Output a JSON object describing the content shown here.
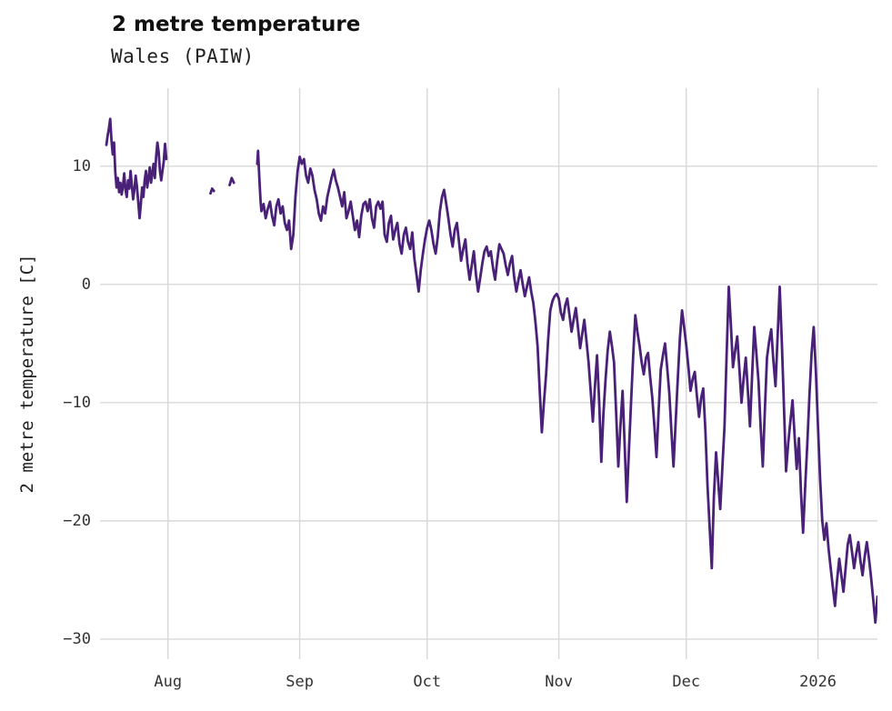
{
  "chart_data": {
    "type": "line",
    "title": "2 metre temperature",
    "subtitle": "Wales (PAIW)",
    "ylabel": "2 metre temperature [C]",
    "xlabel": "",
    "legend": false,
    "grid": true,
    "grid_color": "#d8d8d8",
    "line_color": "#4a2178",
    "line_width": 2.8,
    "x_unit": "day_index (0 = chart left edge, mid-July; Aug 1 = 16, Jan 1 2026 = 169)",
    "xlim": [
      0,
      183
    ],
    "ylim": [
      -31.7,
      16.6
    ],
    "yticks": [
      {
        "value": 10,
        "label": "10"
      },
      {
        "value": 0,
        "label": "0"
      },
      {
        "value": -10,
        "label": "−10"
      },
      {
        "value": -20,
        "label": "−20"
      },
      {
        "value": -30,
        "label": "−30"
      }
    ],
    "xticks": [
      {
        "value": 16,
        "label": "Aug"
      },
      {
        "value": 47,
        "label": "Sep"
      },
      {
        "value": 77,
        "label": "Oct"
      },
      {
        "value": 108,
        "label": "Nov"
      },
      {
        "value": 138,
        "label": "Dec"
      },
      {
        "value": 169,
        "label": "2026"
      }
    ],
    "segments": [
      [
        [
          1.5,
          11.8
        ],
        [
          1.8,
          12.6
        ],
        [
          2.1,
          13.2
        ],
        [
          2.4,
          14.0
        ],
        [
          2.7,
          12.2
        ],
        [
          3.0,
          11.0
        ],
        [
          3.3,
          12.0
        ],
        [
          3.6,
          9.5
        ],
        [
          3.9,
          8.2
        ],
        [
          4.2,
          9.0
        ],
        [
          4.5,
          7.8
        ],
        [
          4.8,
          8.6
        ],
        [
          5.1,
          7.6
        ],
        [
          5.4,
          8.3
        ],
        [
          5.7,
          9.4
        ],
        [
          6.0,
          8.0
        ],
        [
          6.3,
          7.4
        ],
        [
          6.6,
          8.8
        ],
        [
          6.9,
          8.1
        ],
        [
          7.2,
          9.6
        ],
        [
          7.5,
          8.4
        ],
        [
          7.8,
          7.2
        ],
        [
          8.1,
          8.0
        ],
        [
          8.4,
          9.2
        ],
        [
          8.7,
          8.3
        ],
        [
          9.0,
          7.0
        ],
        [
          9.3,
          5.6
        ],
        [
          9.6,
          6.8
        ],
        [
          9.9,
          8.2
        ],
        [
          10.2,
          7.4
        ],
        [
          10.5,
          8.8
        ],
        [
          10.8,
          9.6
        ],
        [
          11.1,
          8.2
        ],
        [
          11.4,
          9.0
        ],
        [
          11.7,
          9.9
        ],
        [
          12.0,
          8.6
        ],
        [
          12.3,
          9.4
        ],
        [
          12.6,
          10.2
        ],
        [
          12.9,
          9.0
        ],
        [
          13.2,
          10.8
        ],
        [
          13.5,
          12.0
        ],
        [
          13.8,
          11.2
        ],
        [
          14.1,
          9.6
        ],
        [
          14.4,
          8.8
        ],
        [
          14.7,
          9.6
        ],
        [
          15.0,
          10.4
        ],
        [
          15.3,
          11.9
        ],
        [
          15.6,
          10.6
        ]
      ],
      [
        [
          26.0,
          7.7
        ],
        [
          26.4,
          8.1
        ],
        [
          26.8,
          7.9
        ]
      ],
      [
        [
          30.5,
          8.4
        ],
        [
          31.0,
          9.0
        ],
        [
          31.5,
          8.6
        ]
      ],
      [
        [
          37.0,
          10.2
        ],
        [
          37.2,
          11.3
        ],
        [
          37.5,
          9.0
        ],
        [
          37.8,
          7.0
        ],
        [
          38.0,
          6.2
        ],
        [
          38.5,
          6.8
        ],
        [
          39.0,
          5.6
        ],
        [
          39.5,
          6.4
        ],
        [
          40.0,
          7.0
        ],
        [
          40.5,
          5.8
        ],
        [
          41.0,
          5.0
        ],
        [
          41.5,
          6.6
        ],
        [
          42.0,
          7.2
        ],
        [
          42.5,
          6.0
        ],
        [
          43.0,
          6.6
        ],
        [
          43.5,
          5.2
        ],
        [
          44.0,
          4.6
        ],
        [
          44.5,
          5.4
        ],
        [
          45.0,
          3.0
        ],
        [
          45.5,
          4.2
        ],
        [
          46.0,
          7.4
        ],
        [
          46.5,
          9.6
        ],
        [
          47.0,
          10.8
        ],
        [
          47.5,
          10.2
        ],
        [
          48.0,
          10.6
        ],
        [
          48.5,
          9.2
        ],
        [
          49.0,
          8.6
        ],
        [
          49.5,
          9.8
        ],
        [
          50.0,
          9.2
        ],
        [
          50.5,
          8.0
        ],
        [
          51.0,
          7.2
        ],
        [
          51.5,
          6.0
        ],
        [
          52.0,
          5.4
        ],
        [
          52.5,
          6.6
        ],
        [
          53.0,
          6.0
        ],
        [
          53.5,
          7.4
        ],
        [
          54.0,
          8.2
        ],
        [
          54.5,
          9.0
        ],
        [
          55.0,
          9.7
        ],
        [
          55.5,
          8.8
        ],
        [
          56.0,
          8.2
        ],
        [
          56.5,
          7.4
        ],
        [
          57.0,
          6.6
        ],
        [
          57.5,
          7.8
        ],
        [
          58.0,
          5.6
        ],
        [
          58.5,
          6.2
        ],
        [
          59.0,
          7.0
        ],
        [
          59.5,
          5.8
        ],
        [
          60.0,
          4.6
        ],
        [
          60.5,
          5.4
        ],
        [
          61.0,
          4.0
        ],
        [
          61.5,
          5.8
        ],
        [
          62.0,
          6.8
        ],
        [
          62.5,
          7.0
        ],
        [
          63.0,
          6.2
        ],
        [
          63.5,
          7.2
        ],
        [
          64.0,
          5.6
        ],
        [
          64.5,
          4.8
        ],
        [
          65.0,
          6.6
        ],
        [
          65.5,
          7.0
        ],
        [
          66.0,
          6.4
        ],
        [
          66.5,
          7.0
        ],
        [
          67.0,
          4.2
        ],
        [
          67.5,
          3.6
        ],
        [
          68.0,
          5.2
        ],
        [
          68.5,
          5.8
        ],
        [
          69.0,
          3.8
        ],
        [
          69.5,
          4.6
        ],
        [
          70.0,
          5.2
        ],
        [
          70.5,
          3.4
        ],
        [
          71.0,
          2.6
        ],
        [
          71.5,
          4.2
        ],
        [
          72.0,
          4.8
        ],
        [
          72.5,
          3.6
        ],
        [
          73.0,
          3.0
        ],
        [
          73.5,
          4.4
        ],
        [
          74.0,
          2.2
        ],
        [
          74.5,
          0.8
        ],
        [
          75.0,
          -0.6
        ],
        [
          75.5,
          1.2
        ],
        [
          76.0,
          2.6
        ],
        [
          76.5,
          3.8
        ],
        [
          77.0,
          4.8
        ],
        [
          77.5,
          5.4
        ],
        [
          78.0,
          4.6
        ],
        [
          78.5,
          3.4
        ],
        [
          79.0,
          2.6
        ],
        [
          79.5,
          4.0
        ],
        [
          80.0,
          6.2
        ],
        [
          80.5,
          7.4
        ],
        [
          81.0,
          8.0
        ],
        [
          81.5,
          6.8
        ],
        [
          82.0,
          5.6
        ],
        [
          82.5,
          4.2
        ],
        [
          83.0,
          3.2
        ],
        [
          83.5,
          4.6
        ],
        [
          84.0,
          5.2
        ],
        [
          84.5,
          3.6
        ],
        [
          85.0,
          2.0
        ],
        [
          85.5,
          3.0
        ],
        [
          86.0,
          3.8
        ],
        [
          86.5,
          1.8
        ],
        [
          87.0,
          0.4
        ],
        [
          87.5,
          1.6
        ],
        [
          88.0,
          2.8
        ],
        [
          88.5,
          0.8
        ],
        [
          89.0,
          -0.6
        ],
        [
          89.5,
          0.6
        ],
        [
          90.0,
          1.8
        ],
        [
          90.5,
          2.8
        ],
        [
          91.0,
          3.2
        ],
        [
          91.5,
          2.4
        ],
        [
          92.0,
          2.8
        ],
        [
          92.5,
          1.4
        ],
        [
          93.0,
          0.4
        ],
        [
          93.5,
          2.0
        ],
        [
          94.0,
          3.4
        ],
        [
          94.5,
          3.0
        ],
        [
          95.0,
          2.6
        ],
        [
          95.5,
          1.6
        ],
        [
          96.0,
          0.8
        ],
        [
          96.5,
          1.8
        ],
        [
          97.0,
          2.4
        ],
        [
          97.5,
          0.6
        ],
        [
          98.0,
          -0.6
        ],
        [
          98.5,
          0.4
        ],
        [
          99.0,
          1.2
        ],
        [
          99.5,
          0.0
        ],
        [
          100.0,
          -1.0
        ],
        [
          100.5,
          -0.2
        ],
        [
          101.0,
          0.6
        ],
        [
          101.5,
          -0.6
        ],
        [
          102.0,
          -1.6
        ],
        [
          102.5,
          -3.2
        ],
        [
          103.0,
          -5.2
        ],
        [
          103.5,
          -9.0
        ],
        [
          104.0,
          -12.5
        ],
        [
          104.5,
          -10.0
        ],
        [
          105.0,
          -7.6
        ],
        [
          105.5,
          -4.6
        ],
        [
          106.0,
          -2.2
        ],
        [
          106.5,
          -1.4
        ],
        [
          107.0,
          -1.0
        ],
        [
          107.5,
          -0.8
        ],
        [
          108.0,
          -1.2
        ],
        [
          108.5,
          -2.4
        ],
        [
          109.0,
          -3.0
        ],
        [
          109.5,
          -1.8
        ],
        [
          110.0,
          -1.2
        ],
        [
          110.5,
          -2.6
        ],
        [
          111.0,
          -4.0
        ],
        [
          111.5,
          -3.0
        ],
        [
          112.0,
          -2.0
        ],
        [
          112.5,
          -3.6
        ],
        [
          113.0,
          -5.4
        ],
        [
          113.5,
          -4.2
        ],
        [
          114.0,
          -3.0
        ],
        [
          114.5,
          -4.8
        ],
        [
          115.0,
          -6.6
        ],
        [
          115.5,
          -9.0
        ],
        [
          116.0,
          -11.6
        ],
        [
          116.5,
          -8.6
        ],
        [
          117.0,
          -6.0
        ],
        [
          117.5,
          -10.0
        ],
        [
          118.0,
          -15.0
        ],
        [
          118.5,
          -11.0
        ],
        [
          119.0,
          -8.0
        ],
        [
          119.5,
          -5.6
        ],
        [
          120.0,
          -4.0
        ],
        [
          120.5,
          -5.2
        ],
        [
          121.0,
          -6.6
        ],
        [
          121.5,
          -11.0
        ],
        [
          122.0,
          -15.4
        ],
        [
          122.5,
          -12.0
        ],
        [
          123.0,
          -9.0
        ],
        [
          123.5,
          -13.6
        ],
        [
          124.0,
          -18.4
        ],
        [
          124.5,
          -14.0
        ],
        [
          125.0,
          -10.0
        ],
        [
          125.5,
          -6.0
        ],
        [
          126.0,
          -2.6
        ],
        [
          126.5,
          -4.0
        ],
        [
          127.0,
          -5.2
        ],
        [
          127.5,
          -6.6
        ],
        [
          128.0,
          -7.6
        ],
        [
          128.5,
          -6.2
        ],
        [
          129.0,
          -5.8
        ],
        [
          129.5,
          -7.8
        ],
        [
          130.0,
          -9.6
        ],
        [
          130.5,
          -12.0
        ],
        [
          131.0,
          -14.6
        ],
        [
          131.5,
          -10.6
        ],
        [
          132.0,
          -7.2
        ],
        [
          132.5,
          -6.0
        ],
        [
          133.0,
          -5.0
        ],
        [
          133.5,
          -7.0
        ],
        [
          134.0,
          -9.2
        ],
        [
          134.5,
          -12.4
        ],
        [
          135.0,
          -15.4
        ],
        [
          135.5,
          -11.6
        ],
        [
          136.0,
          -8.0
        ],
        [
          136.5,
          -4.6
        ],
        [
          137.0,
          -2.2
        ],
        [
          137.5,
          -3.6
        ],
        [
          138.0,
          -5.2
        ],
        [
          138.5,
          -7.0
        ],
        [
          139.0,
          -9.0
        ],
        [
          139.5,
          -8.0
        ],
        [
          140.0,
          -7.4
        ],
        [
          140.5,
          -9.4
        ],
        [
          141.0,
          -11.2
        ],
        [
          141.5,
          -9.6
        ],
        [
          142.0,
          -8.8
        ],
        [
          142.5,
          -12.4
        ],
        [
          143.0,
          -17.0
        ],
        [
          143.5,
          -20.6
        ],
        [
          144.0,
          -24.0
        ],
        [
          144.5,
          -18.0
        ],
        [
          145.0,
          -14.2
        ],
        [
          145.5,
          -16.6
        ],
        [
          146.0,
          -19.0
        ],
        [
          146.5,
          -15.4
        ],
        [
          147.0,
          -12.0
        ],
        [
          147.5,
          -6.0
        ],
        [
          148.0,
          -0.2
        ],
        [
          148.5,
          -3.4
        ],
        [
          149.0,
          -7.0
        ],
        [
          149.5,
          -5.6
        ],
        [
          150.0,
          -4.4
        ],
        [
          150.5,
          -7.2
        ],
        [
          151.0,
          -10.0
        ],
        [
          151.5,
          -8.0
        ],
        [
          152.0,
          -6.2
        ],
        [
          152.5,
          -9.0
        ],
        [
          153.0,
          -12.0
        ],
        [
          153.5,
          -7.6
        ],
        [
          154.0,
          -3.6
        ],
        [
          154.5,
          -5.8
        ],
        [
          155.0,
          -8.2
        ],
        [
          155.5,
          -12.0
        ],
        [
          156.0,
          -15.4
        ],
        [
          156.5,
          -10.6
        ],
        [
          157.0,
          -6.2
        ],
        [
          157.5,
          -4.8
        ],
        [
          158.0,
          -3.8
        ],
        [
          158.5,
          -6.4
        ],
        [
          159.0,
          -8.6
        ],
        [
          159.5,
          -4.4
        ],
        [
          160.0,
          -0.2
        ],
        [
          160.5,
          -5.0
        ],
        [
          161.0,
          -10.4
        ],
        [
          161.5,
          -15.8
        ],
        [
          162.0,
          -13.4
        ],
        [
          162.5,
          -11.6
        ],
        [
          163.0,
          -9.8
        ],
        [
          163.5,
          -12.8
        ],
        [
          164.0,
          -15.6
        ],
        [
          164.5,
          -13.0
        ],
        [
          165.0,
          -17.6
        ],
        [
          165.5,
          -21.0
        ],
        [
          166.0,
          -17.0
        ],
        [
          166.5,
          -13.4
        ],
        [
          167.0,
          -9.4
        ],
        [
          167.5,
          -5.8
        ],
        [
          168.0,
          -3.6
        ],
        [
          168.5,
          -7.4
        ],
        [
          169.0,
          -12.0
        ],
        [
          169.5,
          -16.4
        ],
        [
          170.0,
          -20.0
        ],
        [
          170.5,
          -21.6
        ],
        [
          171.0,
          -20.2
        ],
        [
          171.5,
          -22.4
        ],
        [
          172.0,
          -24.0
        ],
        [
          172.5,
          -25.6
        ],
        [
          173.0,
          -27.2
        ],
        [
          173.5,
          -25.0
        ],
        [
          174.0,
          -23.2
        ],
        [
          174.5,
          -24.6
        ],
        [
          175.0,
          -26.0
        ],
        [
          175.5,
          -24.0
        ],
        [
          176.0,
          -22.0
        ],
        [
          176.5,
          -21.2
        ],
        [
          177.0,
          -22.6
        ],
        [
          177.5,
          -24.0
        ],
        [
          178.0,
          -22.8
        ],
        [
          178.5,
          -21.8
        ],
        [
          179.0,
          -23.4
        ],
        [
          179.5,
          -24.6
        ],
        [
          180.0,
          -23.0
        ],
        [
          180.5,
          -21.8
        ],
        [
          181.0,
          -23.2
        ],
        [
          181.5,
          -24.8
        ],
        [
          182.0,
          -26.6
        ],
        [
          182.5,
          -28.6
        ],
        [
          183.0,
          -26.4
        ]
      ]
    ]
  }
}
